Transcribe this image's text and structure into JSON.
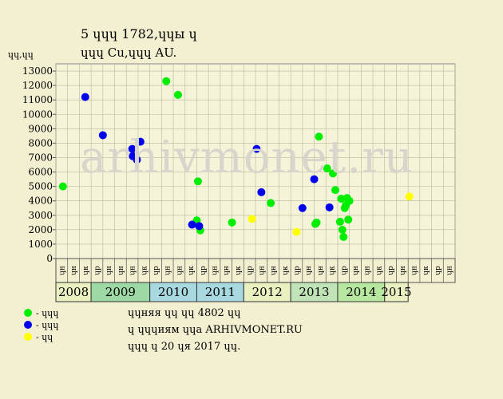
{
  "header": {
    "line1": "5 ɥɥɥ 1782,ɥɥы ɥ",
    "line2": "ɥɥɥ Cu,ɥɥɥ AU."
  },
  "watermark": "arhivmonet.ru",
  "legend": [
    {
      "label": "- ɥɥɥ",
      "color": "#00ee00"
    },
    {
      "label": "- ɥɥɥ",
      "color": "#0000ee"
    },
    {
      "label": "- ɥɥ",
      "color": "#ffff00"
    }
  ],
  "notes": [
    "ɥɥняя ɥɥ ɥɥ 4802 ɥɥ",
    "ɥ ɥɥɥиям ɥɥа ARHIVMONET.RU",
    "ɥɥɥ ɥ 20 ɥя 2017 ɥɥ."
  ],
  "chart_data": {
    "type": "scatter",
    "ylabel": "ɥɥ,ɥɥ",
    "ylim": [
      0,
      13500
    ],
    "yticks": [
      0,
      1000,
      2000,
      3000,
      4000,
      5000,
      6000,
      7000,
      8000,
      9000,
      10000,
      11000,
      12000,
      13000
    ],
    "x_slot_labels": [
      "ɥн",
      "ɥн",
      "ɥк",
      "ɥр",
      "ɥн",
      "ɥн",
      "ɥн",
      "ɥк",
      "ɥр",
      "ɥн",
      "ɥн",
      "ɥк",
      "ɥр",
      "ɥн",
      "ɥн",
      "ɥк",
      "ɥр",
      "ɥн",
      "ɥн",
      "ɥк",
      "ɥр",
      "ɥн",
      "ɥн",
      "ɥк",
      "ɥр",
      "ɥн",
      "ɥн",
      "ɥк",
      "ɥр",
      "ɥн",
      "ɥн",
      "ɥк",
      "ɥр",
      "ɥн"
    ],
    "years": [
      {
        "label": "2008",
        "start": 0,
        "count": 3,
        "color": "#eaf0c0"
      },
      {
        "label": "2009",
        "start": 3,
        "count": 5,
        "color": "#9ed8a4"
      },
      {
        "label": "2010",
        "start": 8,
        "count": 4,
        "color": "#a8d8e0"
      },
      {
        "label": "2011",
        "start": 12,
        "count": 4,
        "color": "#a8d8e0"
      },
      {
        "label": "2012",
        "start": 16,
        "count": 4,
        "color": "#eaf0c0"
      },
      {
        "label": "2013",
        "start": 20,
        "count": 4,
        "color": "#c0e4b8"
      },
      {
        "label": "2014",
        "start": 24,
        "count": 4,
        "color": "#b8e8a0"
      },
      {
        "label": "2015",
        "start": 28,
        "count": 2,
        "color": "#eaf0c0"
      }
    ],
    "series": [
      {
        "color": "#00ee00",
        "points": [
          {
            "x": 0.1,
            "y": 5000
          },
          {
            "x": 8.9,
            "y": 12300
          },
          {
            "x": 9.9,
            "y": 11350
          },
          {
            "x": 11.5,
            "y": 2650
          },
          {
            "x": 11.6,
            "y": 5350
          },
          {
            "x": 11.8,
            "y": 1950
          },
          {
            "x": 14.5,
            "y": 2500
          },
          {
            "x": 17.8,
            "y": 3850
          },
          {
            "x": 21.6,
            "y": 2400
          },
          {
            "x": 21.7,
            "y": 2500
          },
          {
            "x": 21.9,
            "y": 8450
          },
          {
            "x": 22.6,
            "y": 6250
          },
          {
            "x": 23.1,
            "y": 5900
          },
          {
            "x": 23.3,
            "y": 4750
          },
          {
            "x": 23.8,
            "y": 4150
          },
          {
            "x": 23.7,
            "y": 2550
          },
          {
            "x": 23.9,
            "y": 2000
          },
          {
            "x": 24.0,
            "y": 1500
          },
          {
            "x": 24.1,
            "y": 3500
          },
          {
            "x": 24.2,
            "y": 3700
          },
          {
            "x": 24.3,
            "y": 4200
          },
          {
            "x": 24.4,
            "y": 2700
          },
          {
            "x": 24.5,
            "y": 4000
          }
        ]
      },
      {
        "color": "#0000ee",
        "points": [
          {
            "x": 2.0,
            "y": 11200
          },
          {
            "x": 3.5,
            "y": 8550
          },
          {
            "x": 6.0,
            "y": 7600
          },
          {
            "x": 6.05,
            "y": 7100
          },
          {
            "x": 6.4,
            "y": 6850
          },
          {
            "x": 6.7,
            "y": 8100
          },
          {
            "x": 11.1,
            "y": 2350
          },
          {
            "x": 11.7,
            "y": 2250
          },
          {
            "x": 16.6,
            "y": 7600
          },
          {
            "x": 17.0,
            "y": 4600
          },
          {
            "x": 20.5,
            "y": 3500
          },
          {
            "x": 21.5,
            "y": 5500
          },
          {
            "x": 22.8,
            "y": 3550
          }
        ]
      },
      {
        "color": "#ffff00",
        "points": [
          {
            "x": 16.2,
            "y": 2750
          },
          {
            "x": 20.0,
            "y": 1850
          },
          {
            "x": 29.6,
            "y": 4300
          }
        ]
      }
    ]
  }
}
